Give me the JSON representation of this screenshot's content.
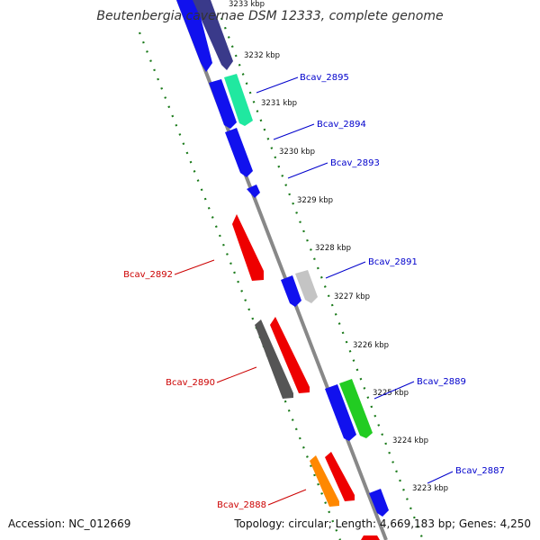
{
  "title": "Beutenbergia cavernae DSM 12333, complete genome",
  "accession": "Accession: NC_012669",
  "topology": "Topology: circular; Length: 4,669,183 bp; Genes: 4,250",
  "colors": {
    "backbone": "#888888",
    "tick_rings": "#1a7a1a",
    "forward_label": "#0000cc",
    "reverse_label": "#cc0000"
  },
  "kbp_labels": [
    "3233 kbp",
    "3232 kbp",
    "3231 kbp",
    "3230 kbp",
    "3229 kbp",
    "3228 kbp",
    "3227 kbp",
    "3226 kbp",
    "3225 kbp",
    "3224 kbp",
    "3223 kbp"
  ],
  "gene_labels": {
    "bcav_2895": "Bcav_2895",
    "bcav_2894": "Bcav_2894",
    "bcav_2893": "Bcav_2893",
    "bcav_2892": "Bcav_2892",
    "bcav_2891": "Bcav_2891",
    "bcav_2890": "Bcav_2890",
    "bcav_2889": "Bcav_2889",
    "bcav_2888": "Bcav_2888",
    "bcav_2887": "Bcav_2887"
  }
}
